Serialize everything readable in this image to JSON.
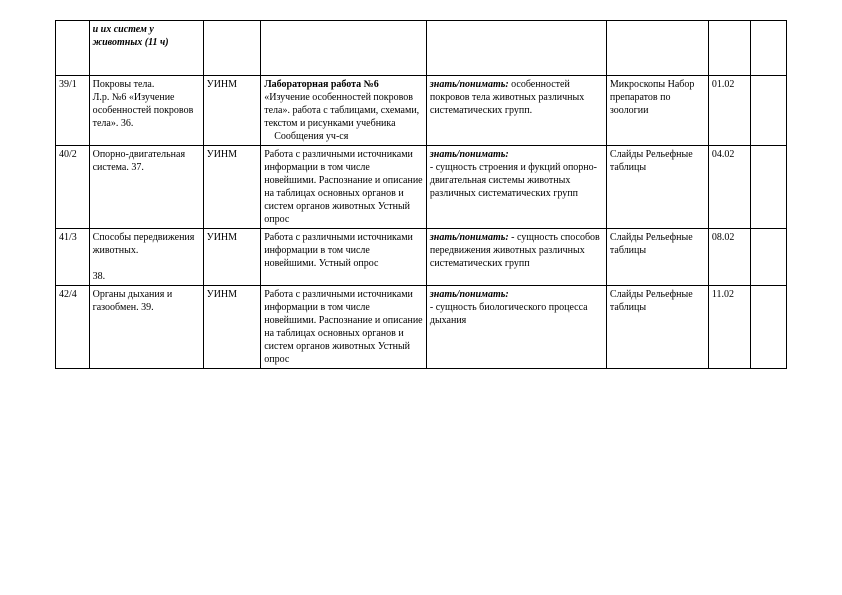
{
  "header": {
    "col2": "и их систем у животных (11 ч)"
  },
  "rows": [
    {
      "num": "39/1",
      "topic_line1": "Покровы тела.",
      "topic_line2": "Л.р. №6 «Изучение особенностей покровов тела». 36.",
      "type": "УИНМ",
      "activity_bold": "Лабораторная работа №6",
      "activity_rest": "«Изучение особенностей покровов тела». работа с таблицами, схемами, текстом и рисунками учебника",
      "activity_extra": "Сообщения уч-ся",
      "know_prefix": "знать/понимать:",
      "know_rest": "особенностей покровов тела животных различных систематических групп.",
      "equip": "Микроскопы Набор препаратов по зоологии",
      "date": "01.02"
    },
    {
      "num": "40/2",
      "topic_line1": "Опорно-двигательная система.       37.",
      "topic_line2": "",
      "type": "УИНМ",
      "activity_bold": "",
      "activity_rest": "Работа с различными источниками информации в том числе новейшими. Распознание и описание на таблицах основных органов и систем органов животных Устный опрос",
      "activity_extra": "",
      "know_prefix": "знать/понимать:",
      "know_rest": "- сущность строения и фукций опорно-двигательная системы животных различных систематических групп",
      "equip": "Слайды Рельефные таблицы",
      "date": "04.02"
    },
    {
      "num": "41/3",
      "topic_line1": "Способы передвижения животных.",
      "topic_line2": "38.",
      "type": "УИНМ",
      "activity_bold": "",
      "activity_rest": "Работа с различными источниками информации в том числе новейшими. Устный опрос",
      "activity_extra": "",
      "know_prefix": "знать/понимать:",
      "know_rest": "- сущность способов передвижения животных различных систематических групп",
      "equip": " Слайды Рельефные таблицы",
      "date": "08.02"
    },
    {
      "num": "42/4",
      "topic_line1": "Органы дыхания и газообмен.        39.",
      "topic_line2": "",
      "type": "УИНМ",
      "activity_bold": "",
      "activity_rest": "Работа с различными источниками информации в том числе новейшими. Распознание и описание на таблицах основных органов и систем органов животных Устный опрос",
      "activity_extra": "",
      "know_prefix": "знать/понимать:",
      "know_rest": "- сущность биологического процесса дыхания",
      "equip": "Слайды Рельефные таблицы",
      "date": "11.02"
    }
  ]
}
